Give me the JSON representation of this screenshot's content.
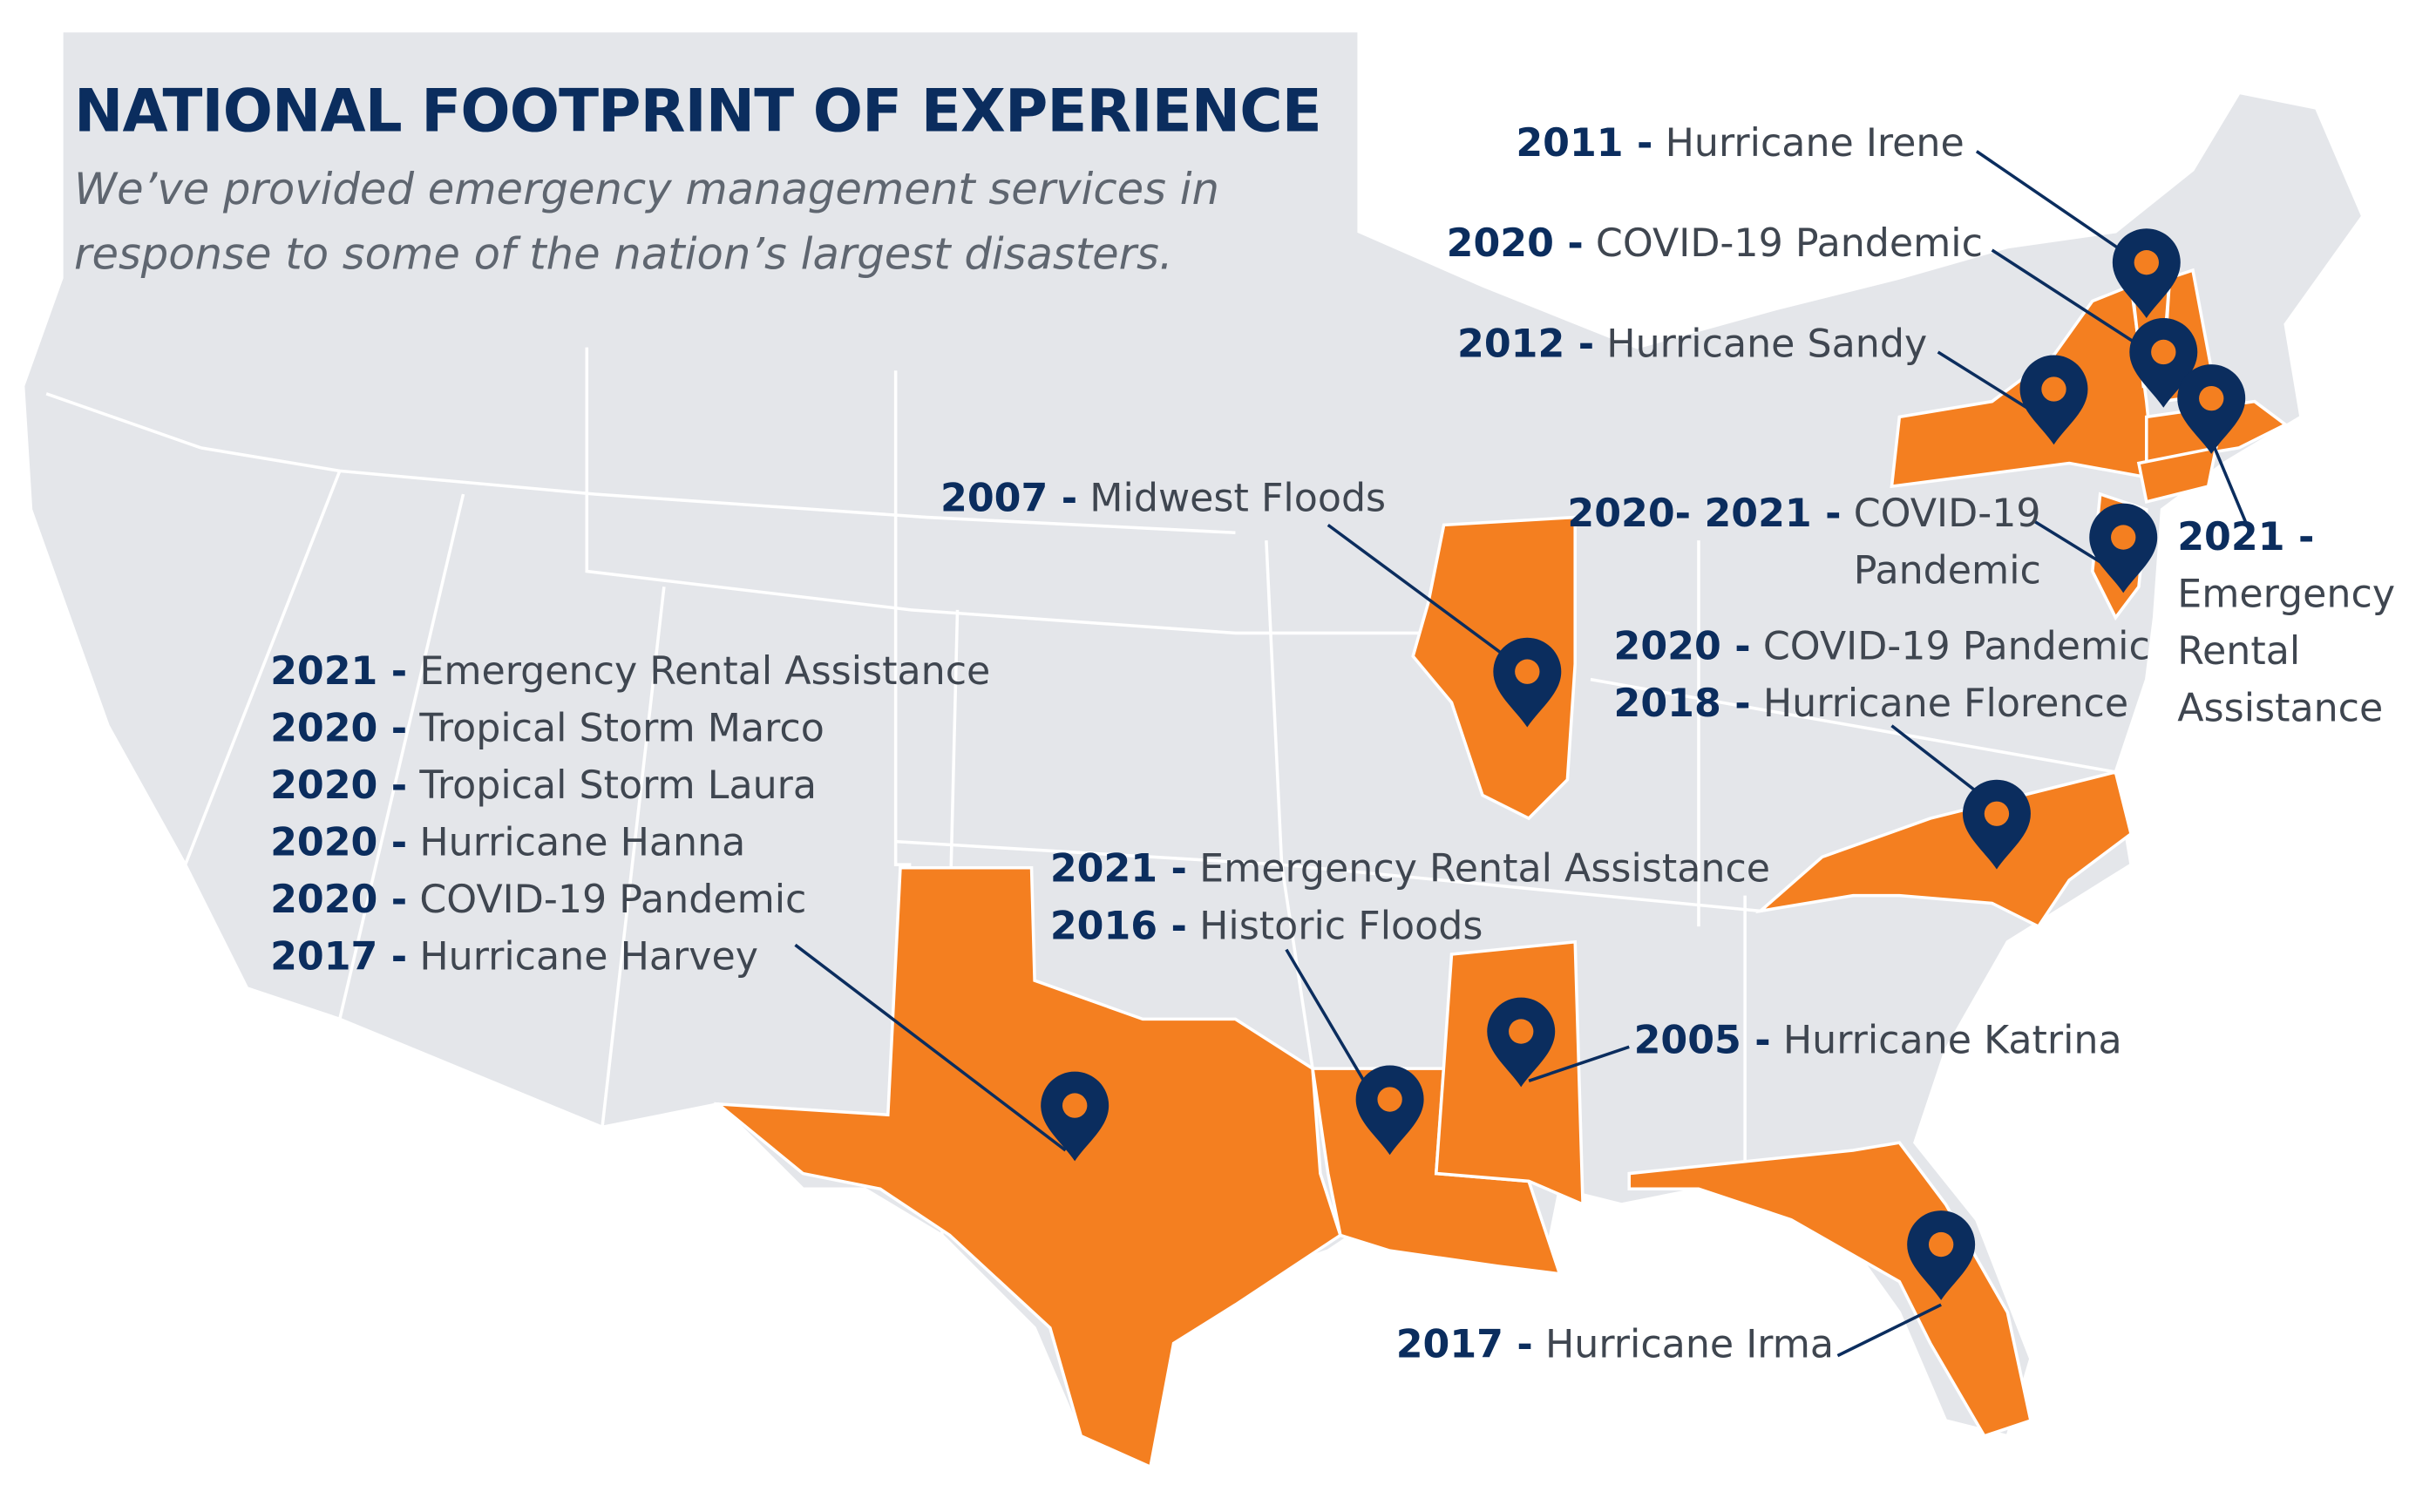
{
  "title": "NATIONAL FOOTPRINT OF EXPERIENCE",
  "subtitle_lines": [
    "We’ve provided emergency management services in",
    "response to some of the nation’s largest disasters."
  ],
  "annotations": [
    {
      "entries": [
        {
          "year": "2011 -",
          "event": "Hurricane Irene"
        }
      ]
    },
    {
      "entries": [
        {
          "year": "2020 -",
          "event": "COVID-19 Pandemic"
        }
      ]
    },
    {
      "entries": [
        {
          "year": "2012 -",
          "event": "Hurricane Sandy"
        }
      ]
    },
    {
      "entries": [
        {
          "year": "2007 -",
          "event": "Midwest Floods"
        }
      ]
    },
    {
      "entries": [
        {
          "year": "2020- 2021 -",
          "event": "COVID-19 Pandemic"
        }
      ]
    },
    {
      "entries": [
        {
          "year": "2021 -",
          "event": "Emergency Rental Assistance"
        }
      ]
    },
    {
      "entries": [
        {
          "year": "2020 -",
          "event": "COVID-19 Pandemic"
        },
        {
          "year": "2018 -",
          "event": "Hurricane Florence"
        }
      ]
    },
    {
      "entries": [
        {
          "year": "2021 -",
          "event": "Emergency Rental Assistance"
        },
        {
          "year": "2020 -",
          "event": "Tropical Storm Marco"
        },
        {
          "year": "2020 -",
          "event": "Tropical Storm Laura"
        },
        {
          "year": "2020 -",
          "event": "Hurricane Hanna"
        },
        {
          "year": "2020 -",
          "event": "COVID-19 Pandemic"
        },
        {
          "year": "2017 -",
          "event": "Hurricane Harvey"
        }
      ]
    },
    {
      "entries": [
        {
          "year": "2021 -",
          "event": "Emergency Rental Assistance"
        },
        {
          "year": "2016 -",
          "event": "Historic Floods"
        }
      ]
    },
    {
      "entries": [
        {
          "year": "2005 -",
          "event": "Hurricane Katrina"
        }
      ]
    },
    {
      "entries": [
        {
          "year": "2017 -",
          "event": "Hurricane Irma"
        }
      ]
    }
  ]
}
